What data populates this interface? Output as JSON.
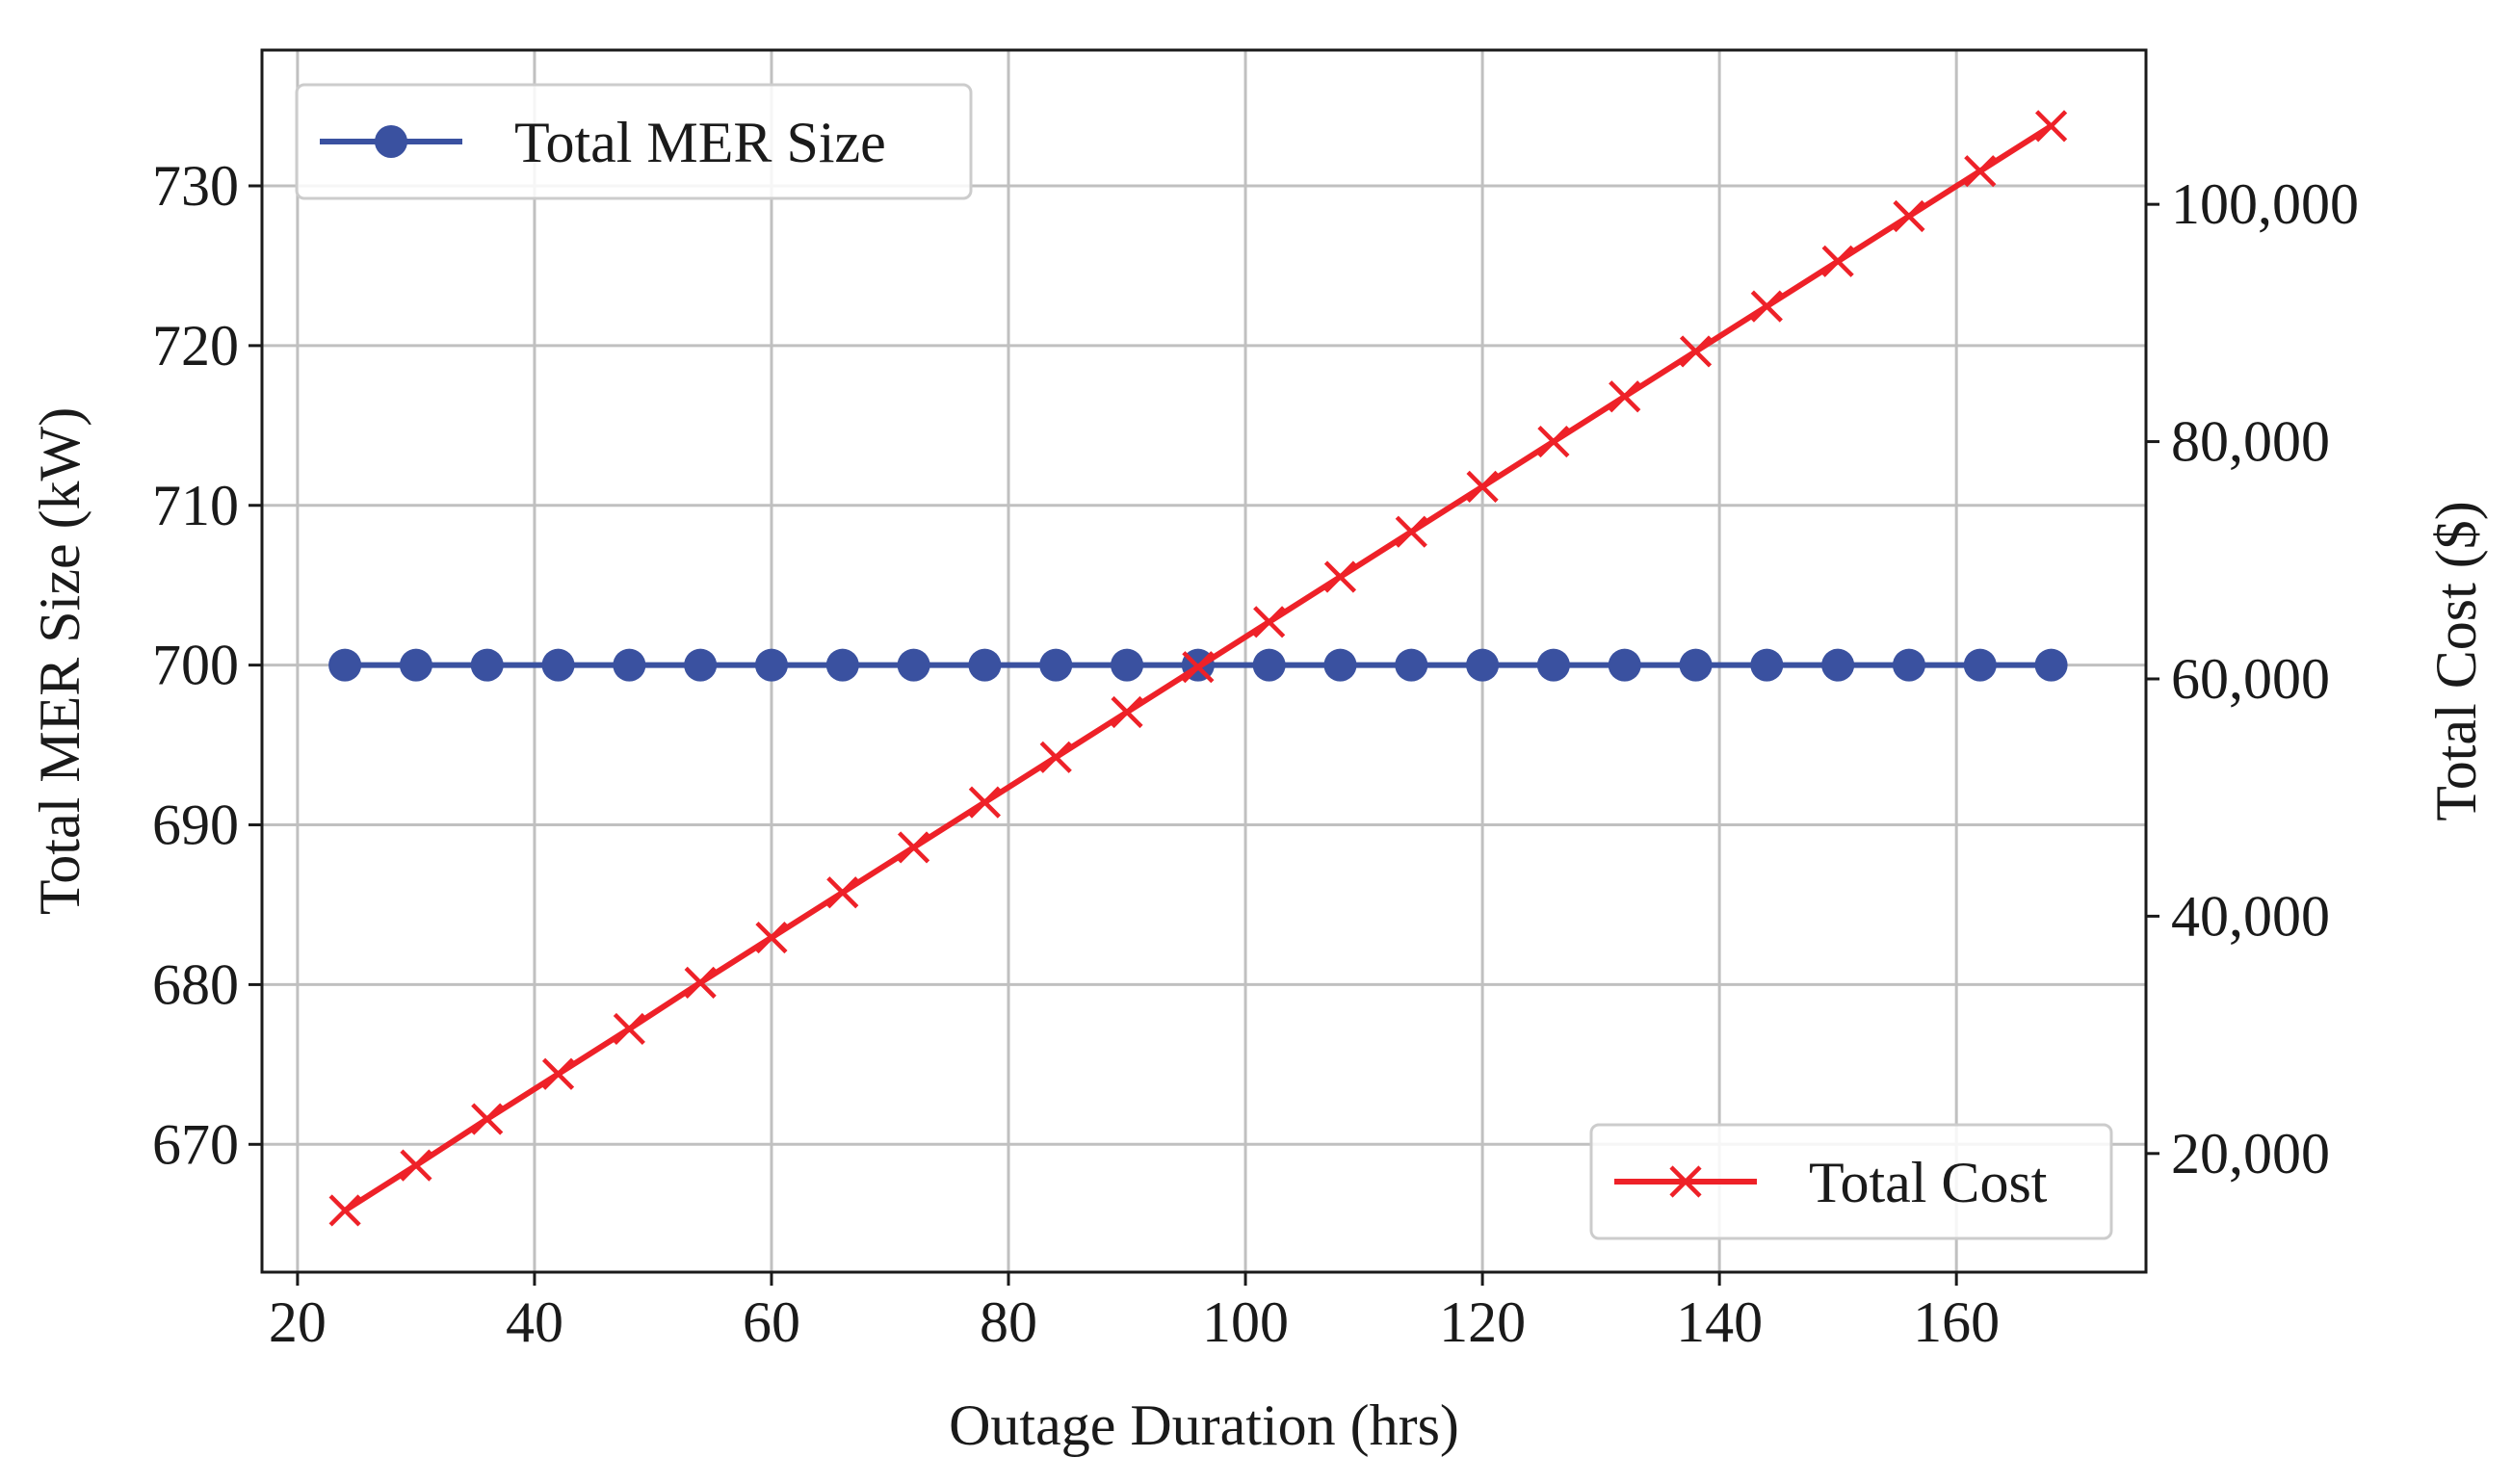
{
  "chart_data": {
    "type": "line",
    "xlabel": "Outage Duration (hrs)",
    "ylabel_left": "Total MER Size (kW)",
    "ylabel_right": "Total Cost ($)",
    "xlim": [
      17,
      176
    ],
    "ylim_left": [
      662,
      738.5
    ],
    "ylim_right": [
      10000,
      113000
    ],
    "x_ticks": [
      20,
      40,
      60,
      80,
      100,
      120,
      140,
      160
    ],
    "x_tick_labels": [
      "20",
      "40",
      "60",
      "80",
      "100",
      "120",
      "140",
      "160"
    ],
    "y_left_ticks": [
      670,
      680,
      690,
      700,
      710,
      720,
      730
    ],
    "y_left_tick_labels": [
      "670",
      "680",
      "690",
      "700",
      "710",
      "720",
      "730"
    ],
    "y_right_ticks": [
      20000,
      40000,
      60000,
      80000,
      100000
    ],
    "y_right_tick_labels": [
      "20,000",
      "40,000",
      "60,000",
      "80,000",
      "100,000"
    ],
    "grid": true,
    "x": [
      24,
      30,
      36,
      42,
      48,
      54,
      60,
      66,
      72,
      78,
      84,
      90,
      96,
      102,
      108,
      114,
      120,
      126,
      132,
      138,
      144,
      150,
      156,
      162,
      168
    ],
    "series": [
      {
        "name": "Total MER Size",
        "axis": "left",
        "color": "#3a51a0",
        "marker": "circle",
        "values": [
          700,
          700,
          700,
          700,
          700,
          700,
          700,
          700,
          700,
          700,
          700,
          700,
          700,
          700,
          700,
          700,
          700,
          700,
          700,
          700,
          700,
          700,
          700,
          700,
          700
        ]
      },
      {
        "name": "Total Cost",
        "axis": "right",
        "color": "#ee2128",
        "marker": "x",
        "values": [
          15200,
          19000,
          22900,
          26700,
          30500,
          34400,
          38200,
          42000,
          45800,
          49600,
          53400,
          57200,
          61000,
          64800,
          68600,
          72400,
          76200,
          80000,
          83800,
          87600,
          91400,
          95200,
          99000,
          102800,
          106600
        ]
      }
    ],
    "legends": [
      {
        "label": "Total MER Size",
        "placement": "upper-left",
        "series": 0
      },
      {
        "label": "Total Cost",
        "placement": "lower-right",
        "series": 1
      }
    ]
  }
}
